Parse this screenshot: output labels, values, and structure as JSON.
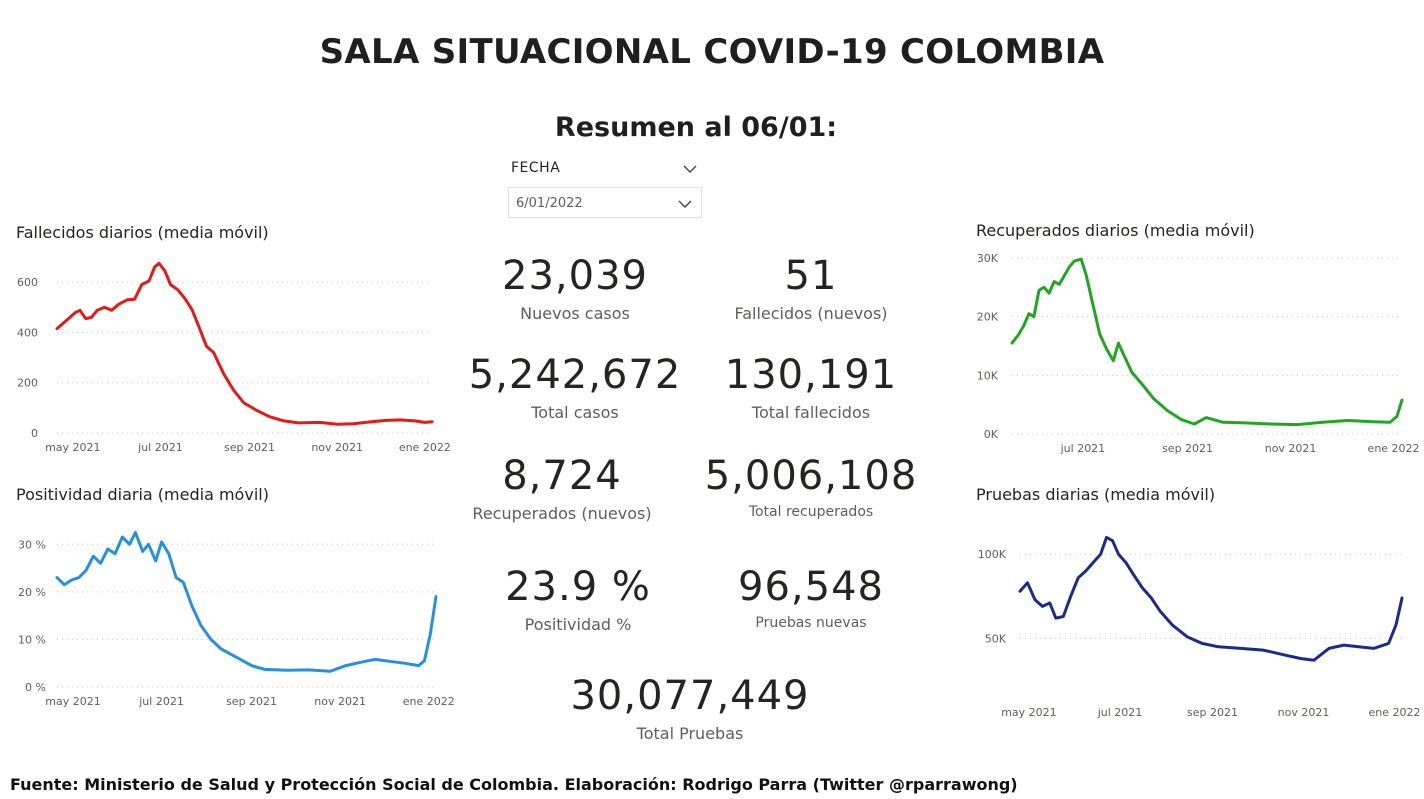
{
  "header": {
    "title": "SALA SITUACIONAL COVID-19 COLOMBIA",
    "subtitle": "Resumen al 06/01:"
  },
  "slicer": {
    "label": "FECHA",
    "value": "6/01/2022",
    "chevron_icon": "chevron-down-icon"
  },
  "kpis": [
    {
      "value": "23,039",
      "label": "Nuevos casos"
    },
    {
      "value": "51",
      "label": "Fallecidos (nuevos)"
    },
    {
      "value": "5,242,672",
      "label": "Total casos"
    },
    {
      "value": "130,191",
      "label": "Total fallecidos"
    },
    {
      "value": "8,724",
      "label": "Recuperados (nuevos)"
    },
    {
      "value": "5,006,108",
      "label": "Total recuperados"
    },
    {
      "value": "23.9 %",
      "label": "Positividad %"
    },
    {
      "value": "96,548",
      "label": "Pruebas nuevas"
    },
    {
      "value": "30,077,449",
      "label": "Total Pruebas"
    }
  ],
  "footer": "Fuente: Ministerio de Salud y Protección Social de Colombia. Elaboración: Rodrigo Parra (Twitter @rparrawong)",
  "chart_data": [
    {
      "id": "fallecidos",
      "type": "line",
      "title": "Fallecidos diarios (media móvil)",
      "color": "#e81818",
      "x_start": "2021-04-20",
      "x_end": "2022-01-06",
      "ylim": [
        0,
        680
      ],
      "yticks": [
        {
          "value": 0,
          "label": "0"
        },
        {
          "value": 200,
          "label": "200"
        },
        {
          "value": 400,
          "label": "400"
        },
        {
          "value": 600,
          "label": "600"
        }
      ],
      "xticks": [
        {
          "date": "2021-05-01",
          "label": "may 2021"
        },
        {
          "date": "2021-07-01",
          "label": "jul 2021"
        },
        {
          "date": "2021-09-01",
          "label": "sep 2021"
        },
        {
          "date": "2021-11-01",
          "label": "nov 2021"
        },
        {
          "date": "2022-01-01",
          "label": "ene 2022"
        }
      ],
      "grid": true,
      "points": [
        [
          "2021-04-20",
          415
        ],
        [
          "2021-04-28",
          455
        ],
        [
          "2021-05-03",
          480
        ],
        [
          "2021-05-06",
          488
        ],
        [
          "2021-05-10",
          455
        ],
        [
          "2021-05-14",
          460
        ],
        [
          "2021-05-18",
          488
        ],
        [
          "2021-05-23",
          500
        ],
        [
          "2021-05-28",
          488
        ],
        [
          "2021-06-02",
          512
        ],
        [
          "2021-06-08",
          530
        ],
        [
          "2021-06-13",
          532
        ],
        [
          "2021-06-18",
          590
        ],
        [
          "2021-06-23",
          605
        ],
        [
          "2021-06-27",
          660
        ],
        [
          "2021-06-30",
          675
        ],
        [
          "2021-07-04",
          645
        ],
        [
          "2021-07-08",
          590
        ],
        [
          "2021-07-13",
          570
        ],
        [
          "2021-07-18",
          535
        ],
        [
          "2021-07-23",
          490
        ],
        [
          "2021-07-28",
          420
        ],
        [
          "2021-08-02",
          345
        ],
        [
          "2021-08-07",
          320
        ],
        [
          "2021-08-14",
          235
        ],
        [
          "2021-08-21",
          170
        ],
        [
          "2021-08-28",
          120
        ],
        [
          "2021-09-06",
          90
        ],
        [
          "2021-09-15",
          65
        ],
        [
          "2021-09-25",
          48
        ],
        [
          "2021-10-05",
          40
        ],
        [
          "2021-10-20",
          42
        ],
        [
          "2021-11-01",
          35
        ],
        [
          "2021-11-12",
          37
        ],
        [
          "2021-11-25",
          45
        ],
        [
          "2021-12-05",
          50
        ],
        [
          "2021-12-15",
          52
        ],
        [
          "2021-12-25",
          48
        ],
        [
          "2022-01-01",
          42
        ],
        [
          "2022-01-06",
          45
        ]
      ]
    },
    {
      "id": "positividad",
      "type": "line",
      "title": "Positividad diaria (media móvil)",
      "color": "#2690e0",
      "x_start": "2021-04-20",
      "x_end": "2022-01-06",
      "ylim": [
        0,
        33
      ],
      "yticks": [
        {
          "value": 0,
          "label": "0 %"
        },
        {
          "value": 10,
          "label": "10 %"
        },
        {
          "value": 20,
          "label": "20 %"
        },
        {
          "value": 30,
          "label": "30 %"
        }
      ],
      "xticks": [
        {
          "date": "2021-05-01",
          "label": "may 2021"
        },
        {
          "date": "2021-07-01",
          "label": "jul 2021"
        },
        {
          "date": "2021-09-01",
          "label": "sep 2021"
        },
        {
          "date": "2021-11-01",
          "label": "nov 2021"
        },
        {
          "date": "2022-01-01",
          "label": "ene 2022"
        }
      ],
      "grid": true,
      "points": [
        [
          "2021-04-20",
          23
        ],
        [
          "2021-04-25",
          21.5
        ],
        [
          "2021-04-30",
          22.5
        ],
        [
          "2021-05-05",
          23
        ],
        [
          "2021-05-10",
          24.5
        ],
        [
          "2021-05-15",
          27.5
        ],
        [
          "2021-05-20",
          26
        ],
        [
          "2021-05-25",
          29
        ],
        [
          "2021-05-30",
          28
        ],
        [
          "2021-06-04",
          31.5
        ],
        [
          "2021-06-09",
          30
        ],
        [
          "2021-06-13",
          32.5
        ],
        [
          "2021-06-18",
          28.5
        ],
        [
          "2021-06-22",
          30
        ],
        [
          "2021-06-27",
          26.5
        ],
        [
          "2021-07-01",
          30.5
        ],
        [
          "2021-07-06",
          28
        ],
        [
          "2021-07-11",
          23
        ],
        [
          "2021-07-16",
          22
        ],
        [
          "2021-07-22",
          17
        ],
        [
          "2021-07-28",
          13
        ],
        [
          "2021-08-04",
          10
        ],
        [
          "2021-08-11",
          8
        ],
        [
          "2021-08-20",
          6.5
        ],
        [
          "2021-09-01",
          4.5
        ],
        [
          "2021-09-10",
          3.7
        ],
        [
          "2021-09-25",
          3.5
        ],
        [
          "2021-10-10",
          3.6
        ],
        [
          "2021-10-25",
          3.3
        ],
        [
          "2021-11-05",
          4.5
        ],
        [
          "2021-11-15",
          5.2
        ],
        [
          "2021-11-25",
          5.8
        ],
        [
          "2021-12-05",
          5.4
        ],
        [
          "2021-12-15",
          5.0
        ],
        [
          "2021-12-25",
          4.5
        ],
        [
          "2021-12-29",
          5.5
        ],
        [
          "2022-01-02",
          11
        ],
        [
          "2022-01-06",
          19
        ]
      ]
    },
    {
      "id": "recuperados",
      "type": "line",
      "title": "Recuperados diarios (media móvil)",
      "color": "#1fa81f",
      "x_start": "2021-05-20",
      "x_end": "2022-01-06",
      "ylim": [
        0,
        30000
      ],
      "yticks": [
        {
          "value": 0,
          "label": "0K"
        },
        {
          "value": 10000,
          "label": "10K"
        },
        {
          "value": 20000,
          "label": "20K"
        },
        {
          "value": 30000,
          "label": "30K"
        }
      ],
      "xticks": [
        {
          "date": "2021-07-01",
          "label": "jul 2021"
        },
        {
          "date": "2021-09-01",
          "label": "sep 2021"
        },
        {
          "date": "2021-11-01",
          "label": "nov 2021"
        },
        {
          "date": "2022-01-01",
          "label": "ene 2022"
        }
      ],
      "grid": true,
      "points": [
        [
          "2021-05-20",
          15500
        ],
        [
          "2021-05-24",
          17000
        ],
        [
          "2021-05-27",
          18500
        ],
        [
          "2021-05-30",
          20500
        ],
        [
          "2021-06-02",
          20000
        ],
        [
          "2021-06-05",
          24500
        ],
        [
          "2021-06-08",
          25000
        ],
        [
          "2021-06-11",
          24000
        ],
        [
          "2021-06-14",
          26000
        ],
        [
          "2021-06-17",
          25500
        ],
        [
          "2021-06-20",
          27000
        ],
        [
          "2021-06-23",
          28500
        ],
        [
          "2021-06-26",
          29500
        ],
        [
          "2021-06-30",
          29800
        ],
        [
          "2021-07-03",
          27000
        ],
        [
          "2021-07-07",
          22000
        ],
        [
          "2021-07-11",
          17000
        ],
        [
          "2021-07-15",
          14500
        ],
        [
          "2021-07-19",
          12500
        ],
        [
          "2021-07-22",
          15500
        ],
        [
          "2021-07-26",
          13000
        ],
        [
          "2021-07-30",
          10500
        ],
        [
          "2021-08-05",
          8500
        ],
        [
          "2021-08-12",
          6000
        ],
        [
          "2021-08-20",
          4000
        ],
        [
          "2021-08-28",
          2500
        ],
        [
          "2021-09-05",
          1700
        ],
        [
          "2021-09-12",
          2800
        ],
        [
          "2021-09-22",
          2000
        ],
        [
          "2021-10-05",
          1900
        ],
        [
          "2021-10-20",
          1700
        ],
        [
          "2021-11-05",
          1600
        ],
        [
          "2021-11-20",
          2000
        ],
        [
          "2021-12-05",
          2300
        ],
        [
          "2021-12-20",
          2100
        ],
        [
          "2021-12-30",
          2000
        ],
        [
          "2022-01-03",
          3000
        ],
        [
          "2022-01-06",
          5800
        ]
      ]
    },
    {
      "id": "pruebas",
      "type": "line",
      "title": "Pruebas diarias (media móvil)",
      "color": "#1b2a8f",
      "x_start": "2021-04-25",
      "x_end": "2022-01-06",
      "ylim": [
        30000,
        112000
      ],
      "yticks": [
        {
          "value": 50000,
          "label": "50K"
        },
        {
          "value": 100000,
          "label": "100K"
        }
      ],
      "xticks": [
        {
          "date": "2021-05-01",
          "label": "may 2021"
        },
        {
          "date": "2021-07-01",
          "label": "jul 2021"
        },
        {
          "date": "2021-09-01",
          "label": "sep 2021"
        },
        {
          "date": "2021-11-01",
          "label": "nov 2021"
        },
        {
          "date": "2022-01-01",
          "label": "ene 2022"
        }
      ],
      "grid": true,
      "points": [
        [
          "2021-04-25",
          78000
        ],
        [
          "2021-04-30",
          83000
        ],
        [
          "2021-05-05",
          73000
        ],
        [
          "2021-05-10",
          69000
        ],
        [
          "2021-05-15",
          71000
        ],
        [
          "2021-05-19",
          62000
        ],
        [
          "2021-05-24",
          63000
        ],
        [
          "2021-05-29",
          75000
        ],
        [
          "2021-06-03",
          86000
        ],
        [
          "2021-06-08",
          90000
        ],
        [
          "2021-06-13",
          95000
        ],
        [
          "2021-06-18",
          100000
        ],
        [
          "2021-06-22",
          110000
        ],
        [
          "2021-06-26",
          108000
        ],
        [
          "2021-06-30",
          100000
        ],
        [
          "2021-07-05",
          95000
        ],
        [
          "2021-07-10",
          88000
        ],
        [
          "2021-07-16",
          80000
        ],
        [
          "2021-07-22",
          74000
        ],
        [
          "2021-07-28",
          66000
        ],
        [
          "2021-08-05",
          58000
        ],
        [
          "2021-08-15",
          51000
        ],
        [
          "2021-08-25",
          47000
        ],
        [
          "2021-09-05",
          45000
        ],
        [
          "2021-09-20",
          44000
        ],
        [
          "2021-10-05",
          43000
        ],
        [
          "2021-10-20",
          40000
        ],
        [
          "2021-10-30",
          38000
        ],
        [
          "2021-11-08",
          37000
        ],
        [
          "2021-11-18",
          44000
        ],
        [
          "2021-11-28",
          46000
        ],
        [
          "2021-12-08",
          45000
        ],
        [
          "2021-12-18",
          44000
        ],
        [
          "2021-12-28",
          47000
        ],
        [
          "2022-01-02",
          58000
        ],
        [
          "2022-01-06",
          74000
        ]
      ]
    }
  ]
}
